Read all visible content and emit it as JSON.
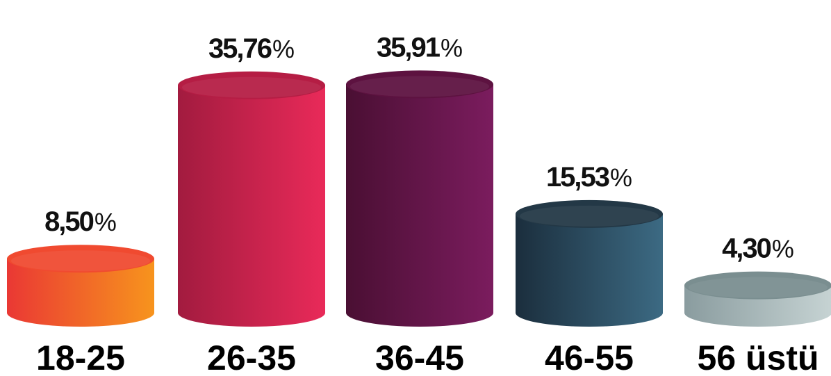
{
  "chart_data": {
    "type": "bar",
    "title": "",
    "xlabel": "",
    "ylabel": "",
    "ylim": [
      0,
      40
    ],
    "grid": false,
    "legend": "none",
    "style": "3d-cylinder",
    "categories": [
      "18-25",
      "26-35",
      "36-45",
      "46-55",
      "56 üstü"
    ],
    "values": [
      8.5,
      35.76,
      35.91,
      15.53,
      4.3
    ],
    "value_labels": [
      "8,50",
      "35,76",
      "35,91",
      "15,53",
      "4,30"
    ],
    "value_suffix": "%",
    "colors": [
      {
        "dark": "#ea3834",
        "light": "#f7941d",
        "top": "#f04a30"
      },
      {
        "dark": "#a21b3f",
        "light": "#e92a59",
        "top": "#b51d44"
      },
      {
        "dark": "#4a0f33",
        "light": "#7b1c5e",
        "top": "#5d1240"
      },
      {
        "dark": "#1b2e3d",
        "light": "#3c6a83",
        "top": "#233846"
      },
      {
        "dark": "#8a9c9f",
        "light": "#c6d3d3",
        "top": "#7a8e90"
      }
    ]
  }
}
